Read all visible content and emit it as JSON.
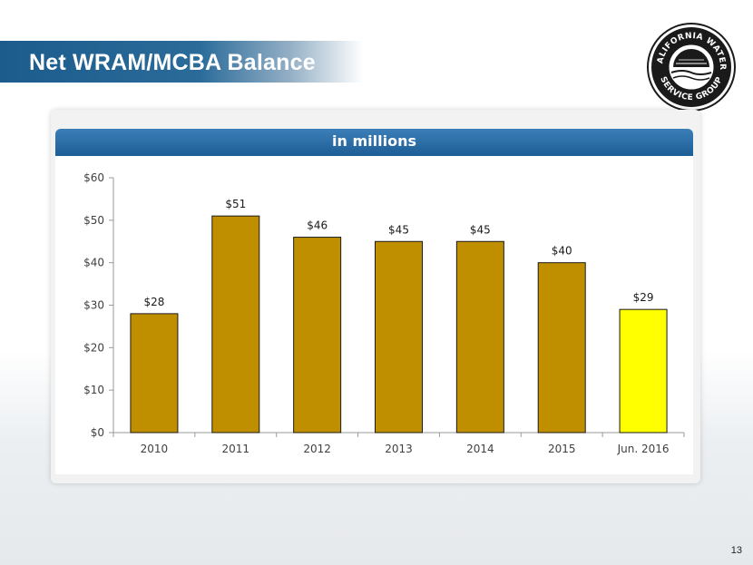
{
  "slide": {
    "title": "Net WRAM/MCBA Balance",
    "page_number": "13",
    "logo_text_top": "CALIFORNIA WATER",
    "logo_text_bottom": "SERVICE GROUP"
  },
  "colors": {
    "title_bar": "#1c5c8c",
    "header": "#2a6aa4",
    "bar": "#c08f00",
    "highlight_bar": "#ffff00"
  },
  "chart_data": {
    "type": "bar",
    "title": "in millions",
    "categories": [
      "2010",
      "2011",
      "2012",
      "2013",
      "2014",
      "2015",
      "Jun. 2016"
    ],
    "values": [
      28,
      51,
      46,
      45,
      45,
      40,
      29
    ],
    "value_labels": [
      "$28",
      "$51",
      "$46",
      "$45",
      "$45",
      "$40",
      "$29"
    ],
    "highlight_index": 6,
    "ylim": [
      0,
      60
    ],
    "yticks": [
      0,
      10,
      20,
      30,
      40,
      50,
      60
    ],
    "ytick_labels": [
      "$0",
      "$10",
      "$20",
      "$30",
      "$40",
      "$50",
      "$60"
    ],
    "xlabel": "",
    "ylabel": "",
    "grid": false,
    "legend": "none"
  }
}
